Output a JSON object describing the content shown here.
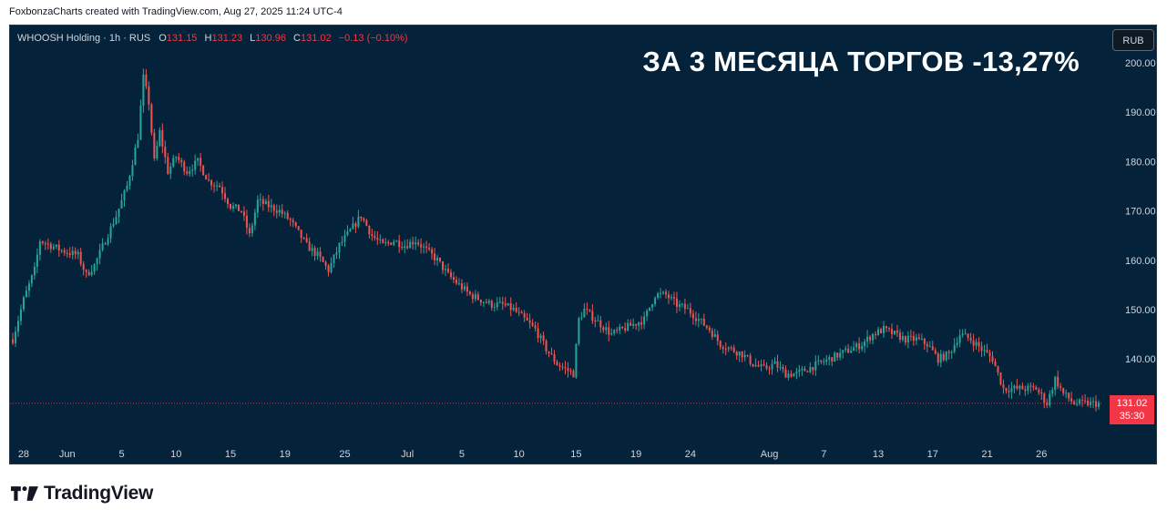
{
  "attribution": "FoxbonzaCharts created with TradingView.com, Aug 27, 2025 11:24 UTC-4",
  "brand": {
    "logo_text": "TradingView",
    "logo_icon": "tradingview-logo-icon"
  },
  "colors": {
    "background": "#04233a",
    "up": "#26a69a",
    "down": "#ef5350",
    "last_price": "#f23645",
    "text": "#d1d4dc"
  },
  "chart_data": {
    "type": "candlestick",
    "symbol": "WHOOSH Holding",
    "interval": "1h",
    "exchange": "RUS",
    "legend": {
      "open_label": "O",
      "open": "131.15",
      "high_label": "H",
      "high": "131.23",
      "low_label": "L",
      "low": "130.96",
      "close_label": "C",
      "close": "131.02",
      "change": "−0.13 (−0.10%)"
    },
    "annotation": "ЗА 3 МЕСЯЦА ТОРГОВ -13,27%",
    "currency": "RUB",
    "last_price": "131.02",
    "countdown": "35:30",
    "ylim": [
      126,
      205
    ],
    "y_ticks": [
      "200.00",
      "190.00",
      "180.00",
      "170.00",
      "160.00",
      "150.00",
      "140.00"
    ],
    "y_tick_values": [
      200,
      190,
      180,
      170,
      160,
      150,
      140
    ],
    "x_ticks": [
      "28",
      "Jun",
      "5",
      "10",
      "15",
      "19",
      "25",
      "Jul",
      "5",
      "10",
      "15",
      "19",
      "24",
      "Aug",
      "7",
      "13",
      "17",
      "21",
      "26"
    ],
    "x_tick_index": [
      4,
      20,
      40,
      60,
      80,
      100,
      122,
      145,
      165,
      186,
      207,
      229,
      249,
      278,
      298,
      318,
      338,
      358,
      378
    ],
    "total_bars": 400,
    "path": [
      [
        0,
        144
      ],
      [
        4,
        152
      ],
      [
        8,
        158
      ],
      [
        10,
        164
      ],
      [
        14,
        163
      ],
      [
        18,
        162
      ],
      [
        24,
        161
      ],
      [
        27,
        157
      ],
      [
        30,
        159
      ],
      [
        34,
        164
      ],
      [
        38,
        169
      ],
      [
        42,
        175
      ],
      [
        46,
        185
      ],
      [
        48,
        197
      ],
      [
        50,
        192
      ],
      [
        52,
        180
      ],
      [
        54,
        186
      ],
      [
        57,
        178
      ],
      [
        60,
        181
      ],
      [
        64,
        178
      ],
      [
        68,
        180
      ],
      [
        72,
        176
      ],
      [
        76,
        175
      ],
      [
        80,
        171
      ],
      [
        84,
        170
      ],
      [
        87,
        165
      ],
      [
        90,
        172
      ],
      [
        94,
        171
      ],
      [
        98,
        170
      ],
      [
        102,
        168
      ],
      [
        108,
        163
      ],
      [
        112,
        161
      ],
      [
        116,
        158
      ],
      [
        120,
        163
      ],
      [
        124,
        166
      ],
      [
        128,
        169
      ],
      [
        132,
        165
      ],
      [
        136,
        163
      ],
      [
        140,
        164
      ],
      [
        144,
        163
      ],
      [
        148,
        164
      ],
      [
        152,
        162
      ],
      [
        156,
        160
      ],
      [
        160,
        157
      ],
      [
        164,
        155
      ],
      [
        168,
        153
      ],
      [
        172,
        152
      ],
      [
        176,
        151
      ],
      [
        180,
        151
      ],
      [
        184,
        150
      ],
      [
        188,
        148
      ],
      [
        192,
        146
      ],
      [
        196,
        142
      ],
      [
        200,
        139
      ],
      [
        203,
        138
      ],
      [
        206,
        137
      ],
      [
        208,
        148
      ],
      [
        210,
        150
      ],
      [
        212,
        149
      ],
      [
        216,
        147
      ],
      [
        220,
        145
      ],
      [
        224,
        146
      ],
      [
        228,
        147
      ],
      [
        232,
        148
      ],
      [
        236,
        153
      ],
      [
        240,
        153
      ],
      [
        244,
        151
      ],
      [
        248,
        150
      ],
      [
        252,
        148
      ],
      [
        256,
        146
      ],
      [
        260,
        143
      ],
      [
        264,
        142
      ],
      [
        268,
        141
      ],
      [
        272,
        139
      ],
      [
        276,
        138
      ],
      [
        280,
        139
      ],
      [
        284,
        137
      ],
      [
        288,
        137
      ],
      [
        292,
        138
      ],
      [
        296,
        139
      ],
      [
        300,
        140
      ],
      [
        304,
        141
      ],
      [
        308,
        142
      ],
      [
        312,
        143
      ],
      [
        316,
        145
      ],
      [
        320,
        146
      ],
      [
        324,
        145
      ],
      [
        328,
        144
      ],
      [
        332,
        144
      ],
      [
        336,
        143
      ],
      [
        340,
        140
      ],
      [
        344,
        141
      ],
      [
        348,
        145
      ],
      [
        352,
        144
      ],
      [
        356,
        142
      ],
      [
        360,
        140
      ],
      [
        364,
        134
      ],
      [
        368,
        134
      ],
      [
        372,
        134
      ],
      [
        376,
        134
      ],
      [
        380,
        131
      ],
      [
        383,
        136
      ],
      [
        386,
        133
      ],
      [
        390,
        131
      ]
    ]
  }
}
